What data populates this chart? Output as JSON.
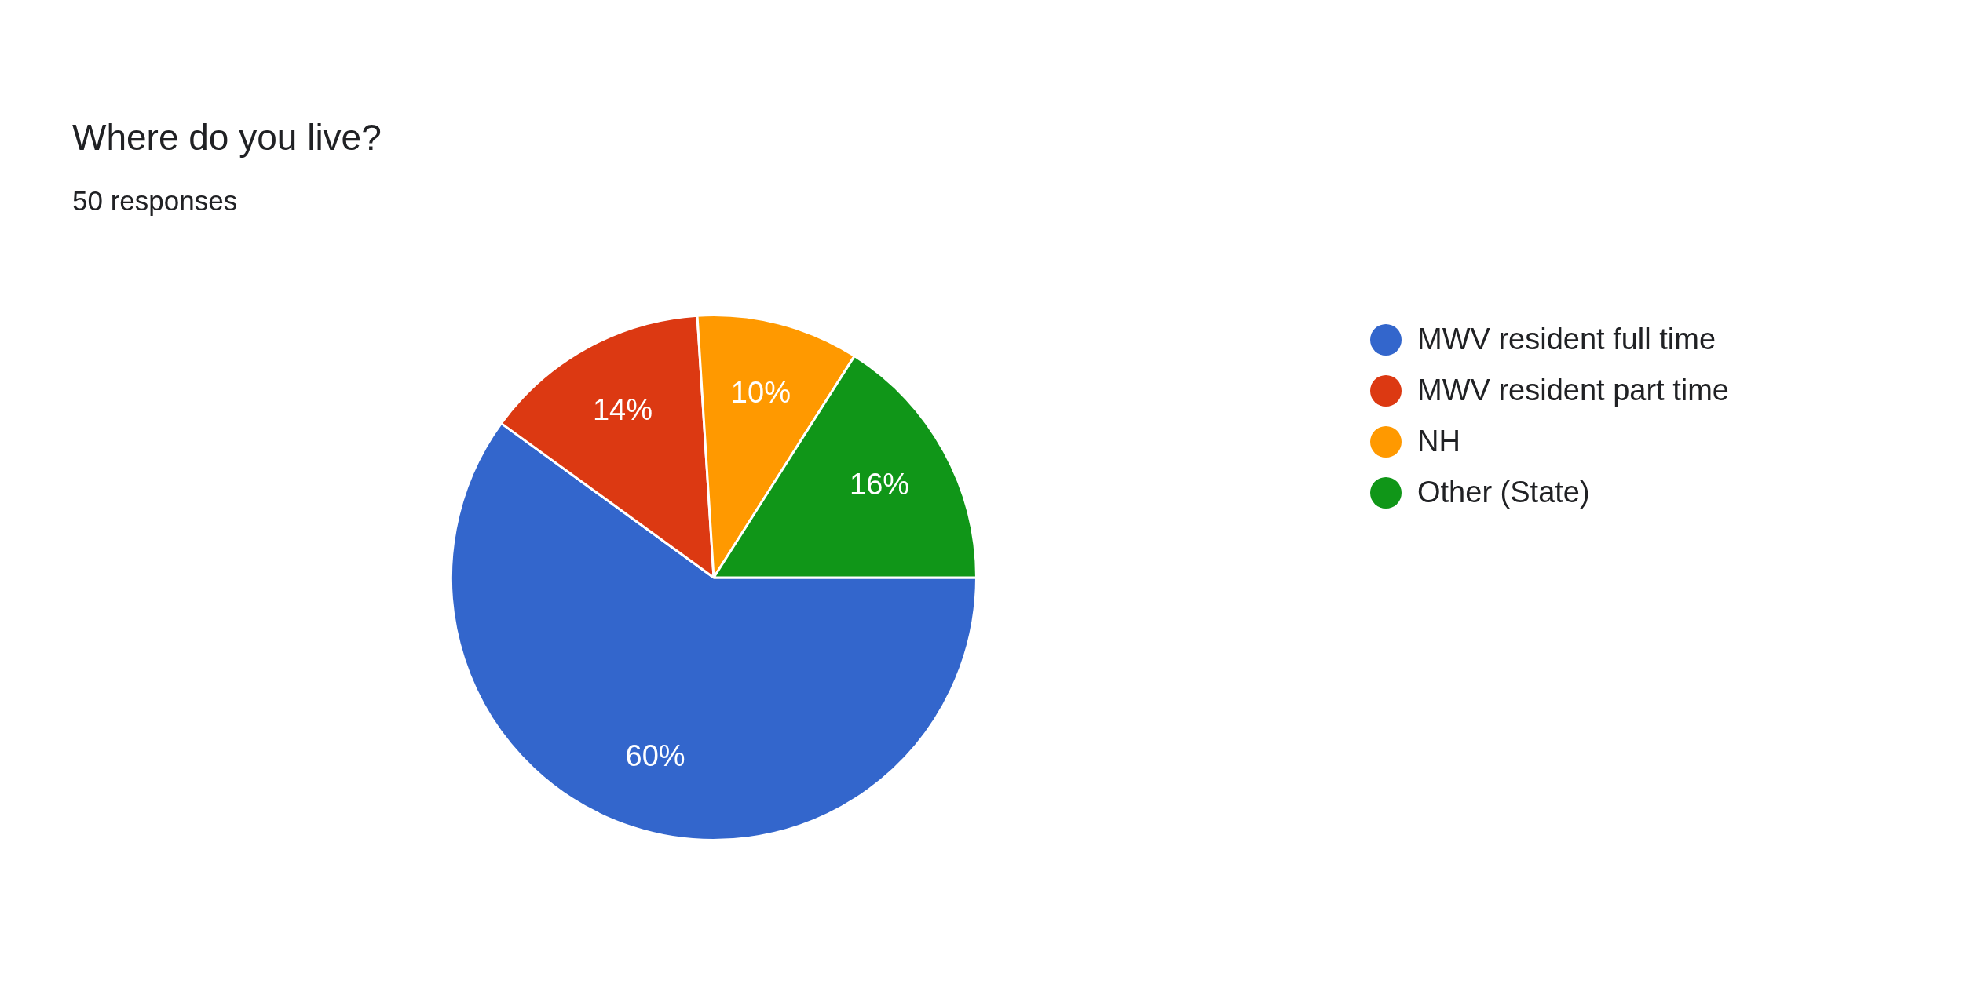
{
  "chart_data": {
    "type": "pie",
    "title": "Where do you live?",
    "subtitle": "50 responses",
    "categories": [
      "MWV resident full time",
      "MWV resident part time",
      "NH",
      "Other (State)"
    ],
    "values": [
      60,
      14,
      10,
      16
    ],
    "value_labels": [
      "60%",
      "14%",
      "10%",
      "16%"
    ],
    "colors": [
      "#3366cc",
      "#dc3912",
      "#ff9900",
      "#109618"
    ],
    "legend": "right"
  }
}
